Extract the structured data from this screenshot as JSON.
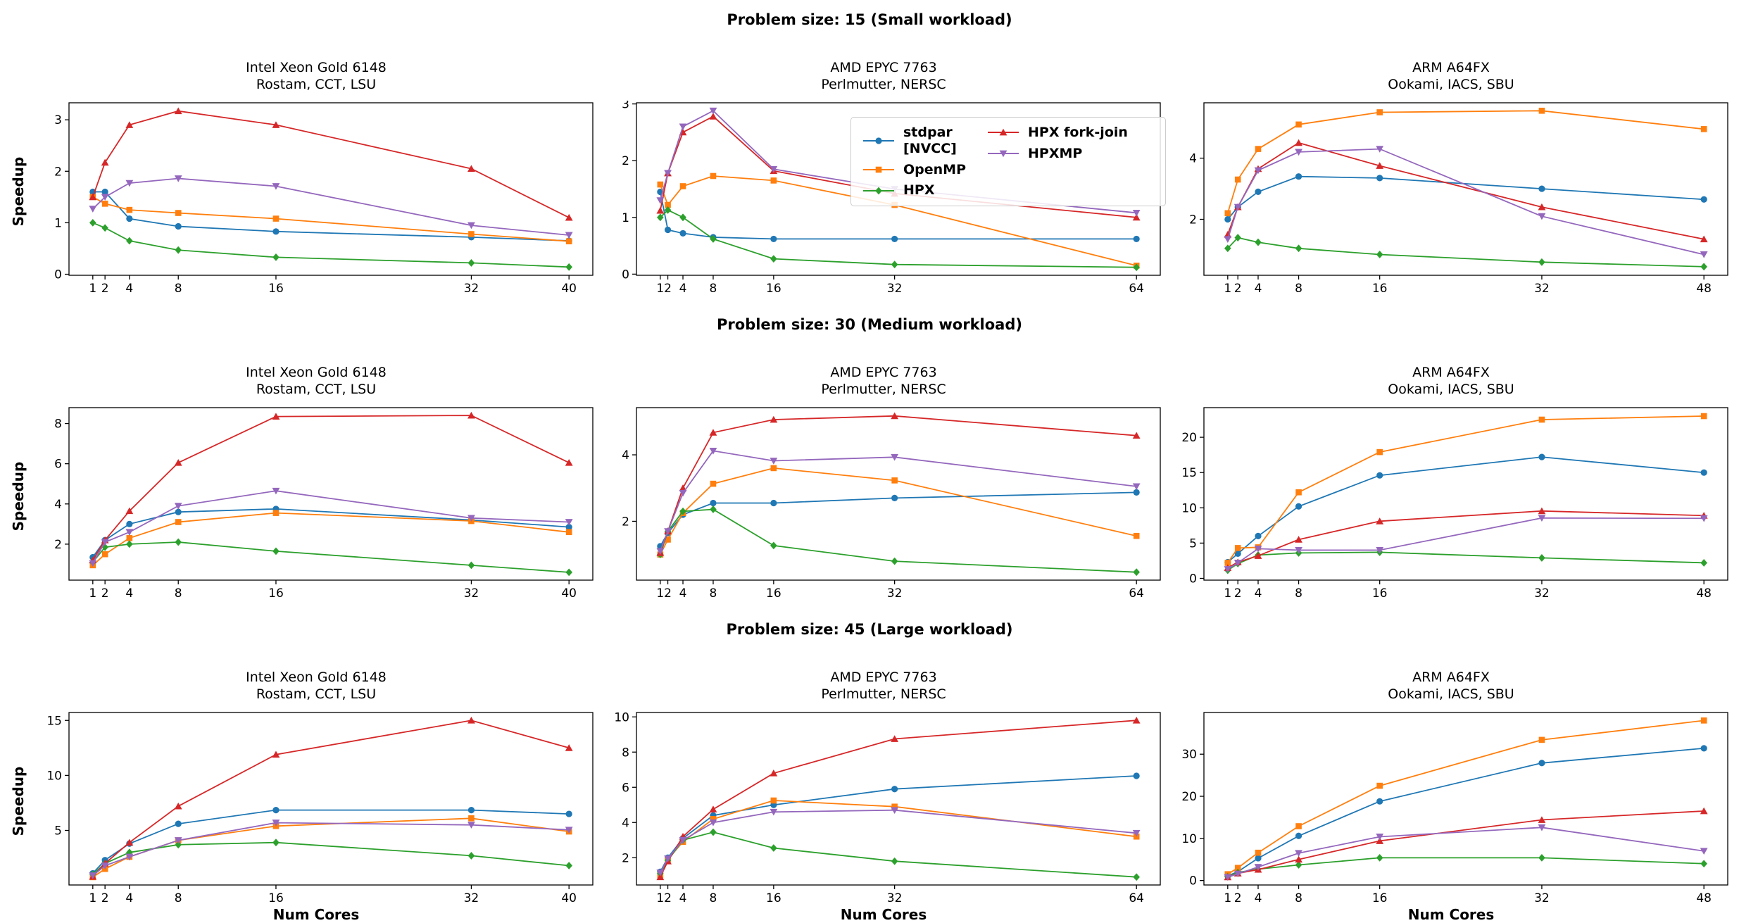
{
  "figure": {
    "row_titles": [
      "Problem size: 15 (Small workload)",
      "Problem size: 30 (Medium workload)",
      "Problem size: 45 (Large workload)"
    ],
    "ylabel": "Speedup",
    "xlabel": "Num Cores"
  },
  "legend": {
    "position": "upper right of row-1 middle chart",
    "entries": [
      {
        "label": "stdpar\n[NVCC]",
        "color": "#1f77b4",
        "marker": "circle"
      },
      {
        "label": "OpenMP",
        "color": "#ff7f0e",
        "marker": "square"
      },
      {
        "label": "HPX",
        "color": "#2ca02c",
        "marker": "diamond"
      },
      {
        "label": "HPX fork-join",
        "color": "#d62728",
        "marker": "triangle-up"
      },
      {
        "label": "HPXMP",
        "color": "#9467bd",
        "marker": "triangle-down"
      }
    ]
  },
  "chart_data": [
    {
      "type": "line",
      "title": "Intel Xeon Gold 6148",
      "subtitle": "Rostam, CCT, LSU",
      "x": [
        1,
        2,
        4,
        8,
        16,
        32,
        40
      ],
      "ylim": [
        -0.02,
        3.33
      ],
      "yticks": [
        0,
        1,
        2,
        3
      ],
      "grid": false,
      "series": [
        {
          "name": "stdpar [NVCC]",
          "values": [
            1.6,
            1.6,
            1.08,
            0.93,
            0.83,
            0.72,
            0.65
          ]
        },
        {
          "name": "OpenMP",
          "values": [
            1.5,
            1.37,
            1.25,
            1.19,
            1.08,
            0.78,
            0.64
          ]
        },
        {
          "name": "HPX",
          "values": [
            1.0,
            0.9,
            0.65,
            0.47,
            0.33,
            0.22,
            0.14
          ]
        },
        {
          "name": "HPX fork-join",
          "values": [
            1.5,
            2.17,
            2.9,
            3.17,
            2.9,
            2.05,
            1.1
          ]
        },
        {
          "name": "HPXMP",
          "values": [
            1.27,
            1.5,
            1.77,
            1.86,
            1.71,
            0.95,
            0.76
          ]
        }
      ]
    },
    {
      "type": "line",
      "title": "AMD EPYC 7763",
      "subtitle": "Perlmutter, NERSC",
      "x": [
        1,
        2,
        4,
        8,
        16,
        32,
        64
      ],
      "ylim": [
        -0.02,
        3.02
      ],
      "yticks": [
        0,
        1,
        2,
        3
      ],
      "grid": false,
      "series": [
        {
          "name": "stdpar [NVCC]",
          "values": [
            1.45,
            0.78,
            0.72,
            0.65,
            0.62,
            0.62,
            0.62
          ]
        },
        {
          "name": "OpenMP",
          "values": [
            1.58,
            1.22,
            1.55,
            1.73,
            1.65,
            1.22,
            0.15
          ]
        },
        {
          "name": "HPX",
          "values": [
            1.0,
            1.13,
            1.0,
            0.62,
            0.27,
            0.17,
            0.12
          ]
        },
        {
          "name": "HPX fork-join",
          "values": [
            1.12,
            1.78,
            2.5,
            2.78,
            1.82,
            1.42,
            1.0
          ]
        },
        {
          "name": "HPXMP",
          "values": [
            1.3,
            1.78,
            2.6,
            2.88,
            1.85,
            1.5,
            1.08
          ]
        }
      ]
    },
    {
      "type": "line",
      "title": "ARM A64FX",
      "subtitle": "Ookami, IACS, SBU",
      "x": [
        1,
        2,
        4,
        8,
        16,
        32,
        48
      ],
      "ylim": [
        0.17,
        5.81
      ],
      "yticks": [
        2,
        4
      ],
      "grid": false,
      "series": [
        {
          "name": "stdpar [NVCC]",
          "values": [
            2.0,
            2.4,
            2.9,
            3.4,
            3.35,
            3.0,
            2.65
          ]
        },
        {
          "name": "OpenMP",
          "values": [
            2.2,
            3.3,
            4.3,
            5.1,
            5.5,
            5.55,
            4.95
          ]
        },
        {
          "name": "HPX",
          "values": [
            1.05,
            1.4,
            1.25,
            1.05,
            0.85,
            0.6,
            0.45
          ]
        },
        {
          "name": "HPX fork-join",
          "values": [
            1.5,
            2.4,
            3.65,
            4.5,
            3.75,
            2.4,
            1.35
          ]
        },
        {
          "name": "HPXMP",
          "values": [
            1.35,
            2.4,
            3.6,
            4.2,
            4.3,
            2.1,
            0.85
          ]
        }
      ]
    },
    {
      "type": "line",
      "title": "Intel Xeon Gold 6148",
      "subtitle": "Rostam, CCT, LSU",
      "x": [
        1,
        2,
        4,
        8,
        16,
        32,
        40
      ],
      "ylim": [
        0.21,
        8.79
      ],
      "yticks": [
        2,
        4,
        6,
        8
      ],
      "grid": false,
      "series": [
        {
          "name": "stdpar [NVCC]",
          "values": [
            1.35,
            2.2,
            3.0,
            3.6,
            3.75,
            3.2,
            2.85
          ]
        },
        {
          "name": "OpenMP",
          "values": [
            0.95,
            1.5,
            2.3,
            3.1,
            3.55,
            3.15,
            2.6
          ]
        },
        {
          "name": "HPX",
          "values": [
            1.1,
            1.85,
            2.0,
            2.1,
            1.65,
            0.95,
            0.6
          ]
        },
        {
          "name": "HPX fork-join",
          "values": [
            1.2,
            2.2,
            3.65,
            6.05,
            8.35,
            8.4,
            6.05
          ]
        },
        {
          "name": "HPXMP",
          "values": [
            1.05,
            2.1,
            2.6,
            3.9,
            4.65,
            3.3,
            3.1
          ]
        }
      ]
    },
    {
      "type": "line",
      "title": "AMD EPYC 7763",
      "subtitle": "Perlmutter, NERSC",
      "x": [
        1,
        2,
        4,
        8,
        16,
        32,
        64
      ],
      "ylim": [
        0.23,
        5.42
      ],
      "yticks": [
        2,
        4
      ],
      "grid": false,
      "series": [
        {
          "name": "stdpar [NVCC]",
          "values": [
            1.25,
            1.65,
            2.2,
            2.55,
            2.55,
            2.7,
            2.87
          ]
        },
        {
          "name": "OpenMP",
          "values": [
            1.0,
            1.45,
            2.25,
            3.13,
            3.6,
            3.23,
            1.56
          ]
        },
        {
          "name": "HPX",
          "values": [
            1.0,
            1.7,
            2.3,
            2.36,
            1.27,
            0.8,
            0.47
          ]
        },
        {
          "name": "HPX fork-join",
          "values": [
            1.05,
            1.7,
            3.0,
            4.67,
            5.06,
            5.17,
            4.58
          ]
        },
        {
          "name": "HPXMP",
          "values": [
            1.1,
            1.7,
            2.85,
            4.12,
            3.82,
            3.93,
            3.05
          ]
        }
      ]
    },
    {
      "type": "line",
      "title": "ARM A64FX",
      "subtitle": "Ookami, IACS, SBU",
      "x": [
        1,
        2,
        4,
        8,
        16,
        32,
        48
      ],
      "ylim": [
        -0.25,
        24.2
      ],
      "yticks": [
        0,
        5,
        10,
        15,
        20
      ],
      "grid": false,
      "series": [
        {
          "name": "stdpar [NVCC]",
          "values": [
            2.3,
            3.5,
            6.0,
            10.2,
            14.6,
            17.2,
            15.0
          ]
        },
        {
          "name": "OpenMP",
          "values": [
            2.2,
            4.3,
            4.4,
            12.2,
            17.9,
            22.5,
            23.0
          ]
        },
        {
          "name": "HPX",
          "values": [
            1.15,
            2.1,
            3.3,
            3.6,
            3.7,
            2.9,
            2.2
          ]
        },
        {
          "name": "HPX fork-join",
          "values": [
            1.5,
            2.3,
            3.2,
            5.5,
            8.1,
            9.55,
            8.9
          ]
        },
        {
          "name": "HPXMP",
          "values": [
            1.3,
            2.2,
            4.2,
            4.0,
            4.0,
            8.55,
            8.5
          ]
        }
      ]
    },
    {
      "type": "line",
      "title": "Intel Xeon Gold 6148",
      "subtitle": "Rostam, CCT, LSU",
      "x": [
        1,
        2,
        4,
        8,
        16,
        32,
        40
      ],
      "ylim": [
        0.04,
        15.72
      ],
      "yticks": [
        5,
        10,
        15
      ],
      "grid": false,
      "series": [
        {
          "name": "stdpar [NVCC]",
          "values": [
            1.1,
            2.3,
            3.8,
            5.6,
            6.85,
            6.85,
            6.5
          ]
        },
        {
          "name": "OpenMP",
          "values": [
            0.75,
            1.5,
            2.6,
            4.1,
            5.4,
            6.1,
            4.9
          ]
        },
        {
          "name": "HPX",
          "values": [
            1.0,
            2.0,
            3.0,
            3.7,
            3.9,
            2.7,
            1.8
          ]
        },
        {
          "name": "HPX fork-join",
          "values": [
            0.8,
            2.0,
            3.9,
            7.2,
            11.9,
            15.0,
            12.5
          ]
        },
        {
          "name": "HPXMP",
          "values": [
            0.9,
            1.8,
            2.6,
            4.1,
            5.7,
            5.5,
            5.05
          ]
        }
      ]
    },
    {
      "type": "line",
      "title": "AMD EPYC 7763",
      "subtitle": "Perlmutter, NERSC",
      "x": [
        1,
        2,
        4,
        8,
        16,
        32,
        64
      ],
      "ylim": [
        0.45,
        10.25
      ],
      "yticks": [
        2,
        4,
        6,
        8,
        10
      ],
      "grid": false,
      "series": [
        {
          "name": "stdpar [NVCC]",
          "values": [
            1.2,
            2.0,
            3.1,
            4.4,
            5.0,
            5.9,
            6.65
          ]
        },
        {
          "name": "OpenMP",
          "values": [
            1.0,
            1.9,
            2.9,
            4.2,
            5.25,
            4.9,
            3.2
          ]
        },
        {
          "name": "HPX",
          "values": [
            1.1,
            1.85,
            3.0,
            3.45,
            2.55,
            1.8,
            0.9
          ]
        },
        {
          "name": "HPX fork-join",
          "values": [
            0.9,
            1.8,
            3.2,
            4.75,
            6.8,
            8.75,
            9.8
          ]
        },
        {
          "name": "HPXMP",
          "values": [
            1.15,
            1.95,
            3.0,
            4.0,
            4.6,
            4.7,
            3.4
          ]
        }
      ]
    },
    {
      "type": "line",
      "title": "ARM A64FX",
      "subtitle": "Ookami, IACS, SBU",
      "x": [
        1,
        2,
        4,
        8,
        16,
        32,
        48
      ],
      "ylim": [
        -1.06,
        39.9
      ],
      "yticks": [
        0,
        10,
        20,
        30
      ],
      "grid": false,
      "series": [
        {
          "name": "stdpar [NVCC]",
          "values": [
            1.1,
            2.1,
            5.3,
            10.6,
            18.8,
            27.9,
            31.4
          ]
        },
        {
          "name": "OpenMP",
          "values": [
            1.5,
            3.0,
            6.6,
            12.9,
            22.5,
            33.4,
            38.0
          ]
        },
        {
          "name": "HPX",
          "values": [
            0.9,
            1.9,
            2.7,
            3.7,
            5.4,
            5.4,
            4.0
          ]
        },
        {
          "name": "HPX fork-join",
          "values": [
            0.8,
            1.7,
            2.6,
            5.0,
            9.4,
            14.4,
            16.5
          ]
        },
        {
          "name": "HPXMP",
          "values": [
            0.8,
            1.6,
            3.2,
            6.5,
            10.4,
            12.6,
            7.0
          ]
        }
      ]
    }
  ]
}
